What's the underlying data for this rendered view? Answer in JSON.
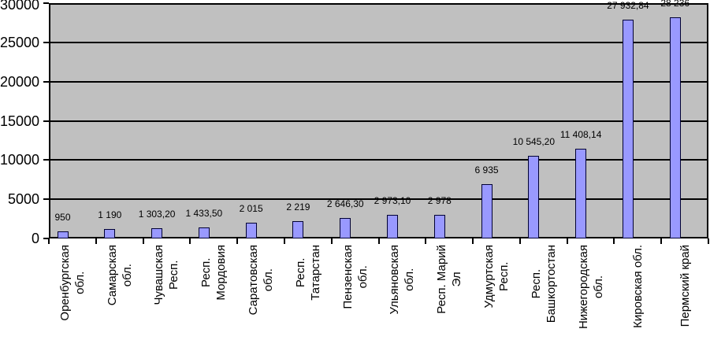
{
  "chart_data": {
    "type": "bar",
    "categories": [
      "Оренбургская обл.",
      "Самарская обл.",
      "Чувашская Респ.",
      "Респ. Мордовия",
      "Саратовская обл.",
      "Респ. Татарстан",
      "Пензенская обл.",
      "Ульяновская обл.",
      "Респ. Марий Эл",
      "Удмуртская Респ.",
      "Респ. Башкортостан",
      "Нижегородская обл.",
      "Кировская обл.",
      "Пермский край"
    ],
    "category_label_lines": [
      [
        "Оренбургская",
        "обл."
      ],
      [
        "Самарская",
        "обл."
      ],
      [
        "Чувашская",
        "Респ."
      ],
      [
        "Респ.",
        "Мордовия"
      ],
      [
        "Саратовская",
        "обл."
      ],
      [
        "Респ.",
        "Татарстан"
      ],
      [
        "Пензенская",
        "обл."
      ],
      [
        "Ульяновская",
        "обл."
      ],
      [
        "Респ. Марий",
        "Эл"
      ],
      [
        "Удмуртская",
        "Респ."
      ],
      [
        "Респ.",
        "Башкортостан"
      ],
      [
        "Нижегородская",
        "обл."
      ],
      [
        "Кировская обл."
      ],
      [
        "Пермский край"
      ]
    ],
    "values": [
      950,
      1190,
      1303.2,
      1433.5,
      2015,
      2219,
      2646.3,
      2973.1,
      2978,
      6935,
      10545.2,
      11408.14,
      27932.84,
      28236
    ],
    "data_labels": [
      "950",
      "1 190",
      "1 303,20",
      "1 433,50",
      "2 015",
      "2 219",
      "2 646,30",
      "2 973,10",
      "2 978",
      "6 935",
      "10 545,20",
      "11 408,14",
      "27 932,84",
      "28 236"
    ],
    "y_ticks": [
      "0",
      "5000",
      "10000",
      "15000",
      "20000",
      "25000",
      "30000"
    ],
    "ylim": [
      0,
      30000
    ],
    "grid": true,
    "legend": "none",
    "bar_label_position": "above",
    "x_labels_rotated_90": true,
    "colors": {
      "page_bg": "#ffffff",
      "plot_bg": "#c0c0c0",
      "bar_fill": "#9999ff",
      "bar_border": "#000033",
      "axis": "#000000",
      "text": "#000000"
    }
  }
}
